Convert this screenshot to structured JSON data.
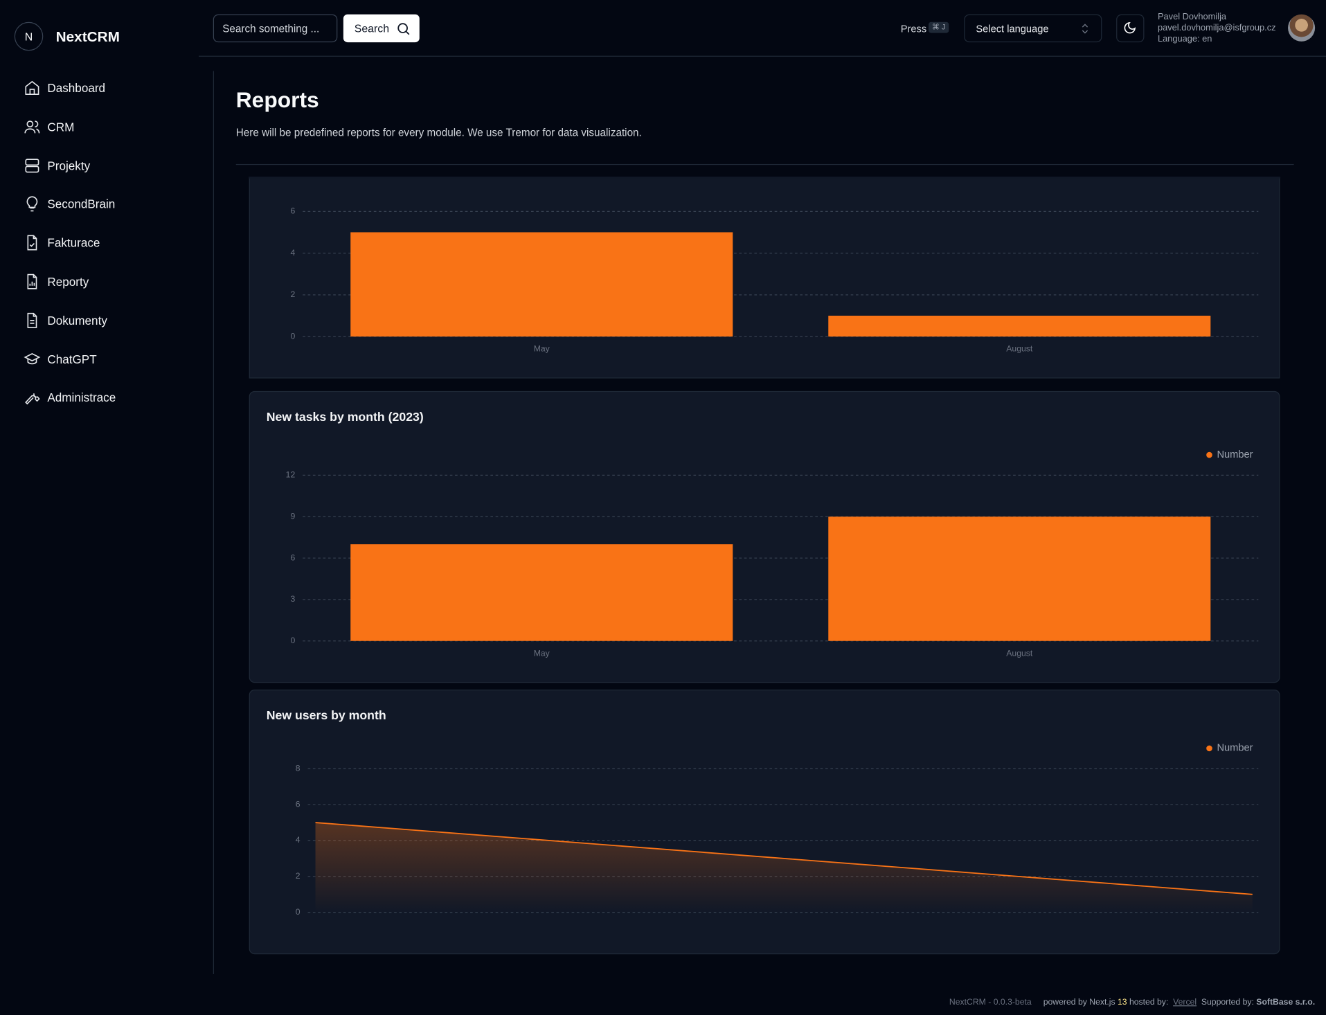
{
  "app": {
    "logo_letter": "N",
    "name": "NextCRM"
  },
  "nav": [
    "Dashboard",
    "CRM",
    "Projekty",
    "SecondBrain",
    "Fakturace",
    "Reporty",
    "Dokumenty",
    "ChatGPT",
    "Administrace"
  ],
  "header": {
    "search_placeholder": "Search something ...",
    "search_button": "Search",
    "press": "Press",
    "shortcut": "⌘ J",
    "language_select": "Select language",
    "user": {
      "name": "Pavel Dovhomilja",
      "email": "pavel.dovhomilja@isfgroup.cz",
      "language": "Language: en"
    }
  },
  "page": {
    "title": "Reports",
    "description": "Here will be predefined reports for every module. We use Tremor for data visualization."
  },
  "chart_data": [
    {
      "type": "bar",
      "categories": [
        "May",
        "August"
      ],
      "values": [
        5,
        1
      ],
      "color": "#f97316",
      "ylim": [
        0,
        6
      ],
      "yticks": [
        0,
        2,
        4,
        6
      ],
      "grid": true
    },
    {
      "type": "bar",
      "title": "New tasks by month (2023)",
      "categories": [
        "May",
        "August"
      ],
      "series": [
        {
          "name": "Number",
          "color": "#f97316",
          "values": [
            7,
            9
          ]
        }
      ],
      "ylim": [
        0,
        12
      ],
      "yticks": [
        0,
        3,
        6,
        9,
        12
      ],
      "grid": true,
      "legend": "top-right"
    },
    {
      "type": "area",
      "title": "New users by month",
      "categories": [
        null,
        null
      ],
      "series": [
        {
          "name": "Number",
          "color": "#f97316",
          "values": [
            5,
            1
          ]
        }
      ],
      "ylim": [
        0,
        8
      ],
      "yticks": [
        0,
        2,
        4,
        6,
        8
      ],
      "grid": true,
      "legend": "top-right"
    }
  ],
  "footer": {
    "version": "NextCRM - 0.0.3-beta",
    "powered_by": "powered by Next.js",
    "next_version": "13",
    "hosted_by": "hosted by:",
    "host": "Vercel",
    "supported_by": "Supported by:",
    "supporter": "SoftBase s.r.o."
  }
}
